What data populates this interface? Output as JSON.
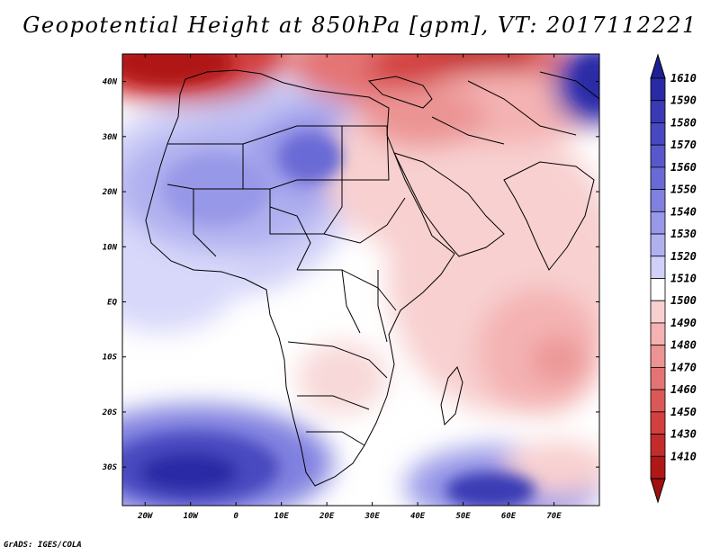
{
  "title": "Geopotential Height at 850hPa [gpm], VT: 2017112221",
  "footer": "GrADS: IGES/COLA",
  "map": {
    "variable": "Geopotential Height at 850hPa",
    "units": "gpm",
    "lon_range": [
      -25,
      80
    ],
    "lat_range": [
      -37,
      45
    ],
    "lat_ticks": [
      {
        "value": 40,
        "label": "40N"
      },
      {
        "value": 30,
        "label": "30N"
      },
      {
        "value": 20,
        "label": "20N"
      },
      {
        "value": 10,
        "label": "10N"
      },
      {
        "value": 0,
        "label": "EQ"
      },
      {
        "value": -10,
        "label": "10S"
      },
      {
        "value": -20,
        "label": "20S"
      },
      {
        "value": -30,
        "label": "30S"
      }
    ],
    "lon_ticks": [
      {
        "value": -20,
        "label": "20W"
      },
      {
        "value": -10,
        "label": "10W"
      },
      {
        "value": 0,
        "label": "0"
      },
      {
        "value": 10,
        "label": "10E"
      },
      {
        "value": 20,
        "label": "20E"
      },
      {
        "value": 30,
        "label": "30E"
      },
      {
        "value": 40,
        "label": "40E"
      },
      {
        "value": 50,
        "label": "50E"
      },
      {
        "value": 60,
        "label": "60E"
      },
      {
        "value": 70,
        "label": "70E"
      }
    ]
  },
  "colorbar": {
    "levels": [
      {
        "label": "1610",
        "color": "#2a2aa6"
      },
      {
        "label": "1590",
        "color": "#3a3ab4"
      },
      {
        "label": "1580",
        "color": "#4848c0"
      },
      {
        "label": "1570",
        "color": "#5858cc"
      },
      {
        "label": "1560",
        "color": "#6a6ad6"
      },
      {
        "label": "1550",
        "color": "#8080e0"
      },
      {
        "label": "1540",
        "color": "#9898e8"
      },
      {
        "label": "1530",
        "color": "#b0b0f0"
      },
      {
        "label": "1520",
        "color": "#d0d0f8"
      },
      {
        "label": "1510",
        "color": "#ffffff"
      },
      {
        "label": "1500",
        "color": "#f8d0d0"
      },
      {
        "label": "1490",
        "color": "#f4b2b2"
      },
      {
        "label": "1480",
        "color": "#ec9494"
      },
      {
        "label": "1470",
        "color": "#e47474"
      },
      {
        "label": "1460",
        "color": "#dc5858"
      },
      {
        "label": "1450",
        "color": "#d24040"
      },
      {
        "label": "1430",
        "color": "#c42c2c"
      },
      {
        "label": "1410",
        "color": "#b01818"
      }
    ],
    "top_arrow_color": "#1e1e96",
    "bottom_arrow_color": "#a01010"
  }
}
